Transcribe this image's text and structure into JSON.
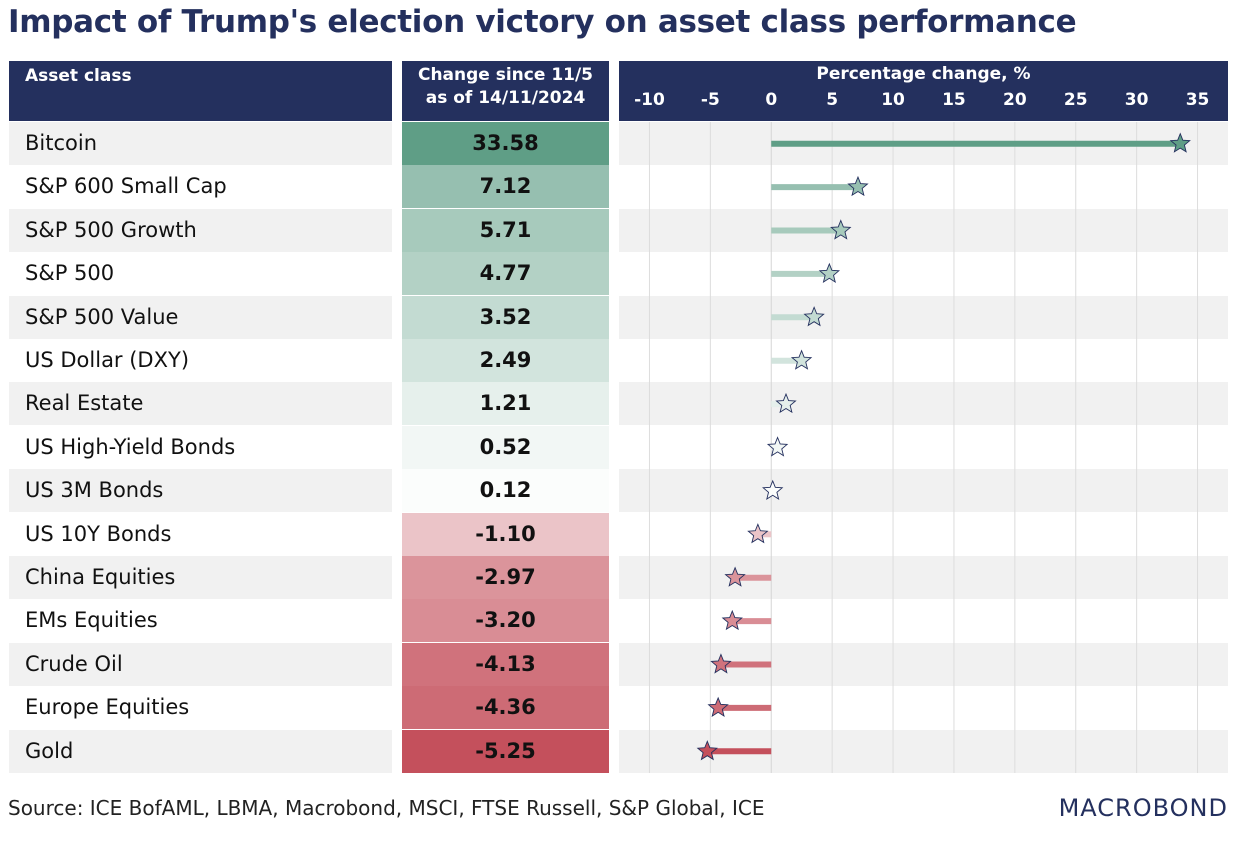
{
  "title": "Impact of Trump's election victory on asset class performance",
  "headers": {
    "asset": "Asset class",
    "change_line1": "Change since 11/5",
    "change_line2": "as of 14/11/2024",
    "axis_label": "Percentage change, %"
  },
  "source": "Source: ICE BofAML, LBMA, Macrobond, MSCI, FTSE Russell, S&P Global, ICE",
  "logo": "MACROBOND",
  "colors": {
    "header_bg": "#24305e",
    "positive": "#5f9e86",
    "negative": "#c4505c",
    "row_alt": "#f1f1f1"
  },
  "chart_data": {
    "type": "bar",
    "xlabel": "Percentage change, %",
    "xlim": [
      -12.5,
      37.5
    ],
    "ticks": [
      -10,
      -5,
      0,
      5,
      10,
      15,
      20,
      25,
      30,
      35
    ],
    "marker": "star",
    "categories": [
      "Bitcoin",
      "S&P 600 Small Cap",
      "S&P 500 Growth",
      "S&P 500",
      "S&P 500 Value",
      "US Dollar (DXY)",
      "Real Estate",
      "US High-Yield Bonds",
      "US 3M Bonds",
      "US 10Y Bonds",
      "China Equities",
      "EMs Equities",
      "Crude Oil",
      "Europe Equities",
      "Gold"
    ],
    "values": [
      33.58,
      7.12,
      5.71,
      4.77,
      3.52,
      2.49,
      1.21,
      0.52,
      0.12,
      -1.1,
      -2.97,
      -3.2,
      -4.13,
      -4.36,
      -5.25
    ],
    "labels": [
      "33.58",
      "7.12",
      "5.71",
      "4.77",
      "3.52",
      "2.49",
      "1.21",
      "0.52",
      "0.12",
      "-1.10",
      "-2.97",
      "-3.20",
      "-4.13",
      "-4.36",
      "-5.25"
    ]
  }
}
